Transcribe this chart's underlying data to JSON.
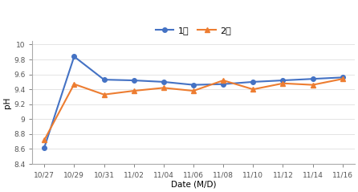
{
  "title": "",
  "xlabel": "Date (M/D)",
  "ylabel": "pH",
  "ylim": [
    8.4,
    10.05
  ],
  "yticks": [
    8.4,
    8.6,
    8.8,
    9.0,
    9.2,
    9.4,
    9.6,
    9.8,
    10.0
  ],
  "ytick_labels": [
    "8.4",
    "8.6",
    "8.8",
    "9",
    "9.2",
    "9.4",
    "9.6",
    "9.8",
    "10"
  ],
  "x_labels": [
    "10/27",
    "10/29",
    "10/31",
    "11/02",
    "11/04",
    "11/06",
    "11/08",
    "11/10",
    "11/12",
    "11/14",
    "11/16"
  ],
  "series1_label": "1단",
  "series2_label": "2단",
  "series1_color": "#4472C4",
  "series2_color": "#ED7D31",
  "series1_values": [
    8.62,
    9.84,
    9.53,
    9.52,
    9.5,
    9.46,
    9.47,
    9.5,
    9.52,
    9.54,
    9.56
  ],
  "series2_values": [
    8.72,
    9.47,
    9.33,
    9.38,
    9.42,
    9.38,
    9.52,
    9.4,
    9.48,
    9.46,
    9.54
  ],
  "background_color": "#ffffff",
  "series1_marker": "o",
  "series2_marker": "^",
  "markersize": 4,
  "linewidth": 1.5,
  "spine_color": "#aaaaaa",
  "grid_color": "#d9d9d9"
}
